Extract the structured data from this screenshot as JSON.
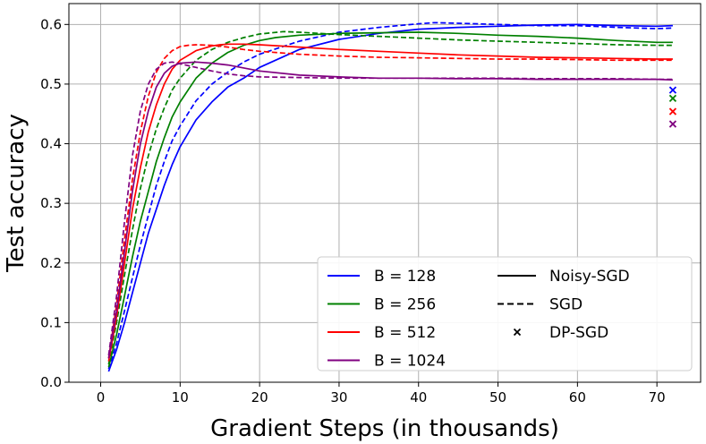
{
  "chart_data": {
    "type": "line",
    "title": "",
    "xlabel": "Gradient Steps (in thousands)",
    "ylabel": "Test accuracy",
    "xlim": [
      -4,
      75.5
    ],
    "ylim": [
      0.0,
      0.635
    ],
    "xticks": [
      0,
      10,
      20,
      30,
      40,
      50,
      60,
      70
    ],
    "yticks": [
      0.0,
      0.1,
      0.2,
      0.3,
      0.4,
      0.5,
      0.6
    ],
    "grid": true,
    "legend_position": "bottom-right",
    "legend_batch_entries": [
      {
        "label": "B = 128",
        "color": "#0000ff"
      },
      {
        "label": "B = 256",
        "color": "#008000"
      },
      {
        "label": "B = 512",
        "color": "#ff0000"
      },
      {
        "label": "B = 1024",
        "color": "#800080"
      }
    ],
    "legend_style_entries": [
      {
        "label": "Noisy-SGD",
        "style": "solid"
      },
      {
        "label": "SGD",
        "style": "dashed"
      },
      {
        "label": "DP-SGD",
        "style": "cross"
      }
    ],
    "series": [
      {
        "batch": "B = 128",
        "method": "Noisy-SGD",
        "color": "#0000ff",
        "style": "solid",
        "x": [
          1,
          2,
          3,
          4,
          5,
          6,
          7,
          8,
          9,
          10,
          12,
          14,
          16,
          18,
          20,
          25,
          30,
          35,
          40,
          45,
          50,
          55,
          60,
          65,
          70,
          72
        ],
        "y": [
          0.018,
          0.055,
          0.1,
          0.15,
          0.2,
          0.25,
          0.29,
          0.33,
          0.365,
          0.395,
          0.44,
          0.47,
          0.495,
          0.51,
          0.528,
          0.558,
          0.575,
          0.585,
          0.592,
          0.595,
          0.597,
          0.599,
          0.6,
          0.598,
          0.597,
          0.598
        ]
      },
      {
        "batch": "B = 128",
        "method": "SGD",
        "color": "#0000ff",
        "style": "dashed",
        "x": [
          1,
          2,
          3,
          4,
          5,
          6,
          7,
          8,
          9,
          10,
          12,
          14,
          16,
          18,
          20,
          25,
          30,
          35,
          40,
          42,
          45,
          50,
          55,
          60,
          65,
          70,
          72
        ],
        "y": [
          0.022,
          0.065,
          0.12,
          0.175,
          0.23,
          0.28,
          0.33,
          0.37,
          0.405,
          0.43,
          0.472,
          0.5,
          0.52,
          0.537,
          0.55,
          0.572,
          0.587,
          0.595,
          0.601,
          0.603,
          0.602,
          0.6,
          0.598,
          0.598,
          0.595,
          0.593,
          0.594
        ]
      },
      {
        "batch": "B = 256",
        "method": "Noisy-SGD",
        "color": "#008000",
        "style": "solid",
        "x": [
          1,
          2,
          3,
          4,
          5,
          6,
          7,
          8,
          9,
          10,
          12,
          14,
          16,
          18,
          20,
          22,
          25,
          30,
          35,
          40,
          45,
          50,
          55,
          60,
          65,
          70,
          72
        ],
        "y": [
          0.025,
          0.08,
          0.145,
          0.21,
          0.27,
          0.32,
          0.37,
          0.41,
          0.445,
          0.47,
          0.51,
          0.535,
          0.553,
          0.565,
          0.573,
          0.578,
          0.582,
          0.585,
          0.586,
          0.587,
          0.585,
          0.582,
          0.58,
          0.577,
          0.573,
          0.57,
          0.57
        ]
      },
      {
        "batch": "B = 256",
        "method": "SGD",
        "color": "#008000",
        "style": "dashed",
        "x": [
          1,
          2,
          3,
          4,
          5,
          6,
          7,
          8,
          9,
          10,
          12,
          14,
          16,
          18,
          20,
          23,
          25,
          30,
          35,
          40,
          45,
          50,
          55,
          60,
          65,
          70,
          72
        ],
        "y": [
          0.03,
          0.1,
          0.18,
          0.255,
          0.325,
          0.38,
          0.425,
          0.46,
          0.49,
          0.51,
          0.54,
          0.558,
          0.57,
          0.578,
          0.584,
          0.588,
          0.587,
          0.583,
          0.58,
          0.577,
          0.574,
          0.572,
          0.57,
          0.568,
          0.566,
          0.565,
          0.565
        ]
      },
      {
        "batch": "B = 512",
        "method": "Noisy-SGD",
        "color": "#ff0000",
        "style": "solid",
        "x": [
          1,
          2,
          3,
          4,
          5,
          6,
          7,
          8,
          9,
          10,
          12,
          14,
          15,
          16,
          18,
          20,
          25,
          30,
          35,
          40,
          45,
          50,
          55,
          60,
          65,
          70,
          72
        ],
        "y": [
          0.035,
          0.11,
          0.2,
          0.29,
          0.36,
          0.42,
          0.465,
          0.5,
          0.525,
          0.54,
          0.556,
          0.564,
          0.566,
          0.567,
          0.567,
          0.566,
          0.562,
          0.558,
          0.555,
          0.552,
          0.549,
          0.547,
          0.545,
          0.544,
          0.543,
          0.542,
          0.542
        ]
      },
      {
        "batch": "B = 512",
        "method": "SGD",
        "color": "#ff0000",
        "style": "dashed",
        "x": [
          1,
          2,
          3,
          4,
          5,
          6,
          7,
          8,
          9,
          10,
          11,
          12,
          14,
          16,
          18,
          20,
          25,
          30,
          35,
          40,
          45,
          50,
          55,
          60,
          65,
          70,
          72
        ],
        "y": [
          0.04,
          0.13,
          0.24,
          0.34,
          0.42,
          0.48,
          0.52,
          0.543,
          0.556,
          0.563,
          0.565,
          0.566,
          0.565,
          0.562,
          0.558,
          0.555,
          0.55,
          0.547,
          0.545,
          0.544,
          0.543,
          0.542,
          0.542,
          0.541,
          0.54,
          0.54,
          0.54
        ]
      },
      {
        "batch": "B = 1024",
        "method": "Noisy-SGD",
        "color": "#800080",
        "style": "solid",
        "x": [
          1,
          2,
          3,
          4,
          5,
          6,
          7,
          8,
          9,
          10,
          12,
          14,
          16,
          18,
          20,
          25,
          30,
          35,
          40,
          45,
          50,
          55,
          60,
          65,
          70,
          72
        ],
        "y": [
          0.04,
          0.12,
          0.22,
          0.32,
          0.4,
          0.455,
          0.495,
          0.518,
          0.53,
          0.535,
          0.537,
          0.535,
          0.532,
          0.527,
          0.522,
          0.515,
          0.512,
          0.51,
          0.51,
          0.509,
          0.509,
          0.508,
          0.508,
          0.508,
          0.508,
          0.507
        ]
      },
      {
        "batch": "B = 1024",
        "method": "SGD",
        "color": "#800080",
        "style": "dashed",
        "x": [
          1,
          2,
          3,
          4,
          5,
          6,
          7,
          8,
          9,
          10,
          12,
          14,
          16,
          18,
          20,
          25,
          30,
          35,
          40,
          45,
          50,
          55,
          60,
          65,
          70,
          72
        ],
        "y": [
          0.045,
          0.145,
          0.27,
          0.38,
          0.455,
          0.5,
          0.525,
          0.535,
          0.537,
          0.534,
          0.528,
          0.522,
          0.517,
          0.514,
          0.512,
          0.511,
          0.51,
          0.51,
          0.51,
          0.51,
          0.51,
          0.509,
          0.509,
          0.509,
          0.508,
          0.508
        ]
      }
    ],
    "dp_sgd_points": [
      {
        "batch": "B = 128",
        "color": "#0000ff",
        "x": 72,
        "y": 0.49
      },
      {
        "batch": "B = 256",
        "color": "#008000",
        "x": 72,
        "y": 0.476
      },
      {
        "batch": "B = 512",
        "color": "#ff0000",
        "x": 72,
        "y": 0.454
      },
      {
        "batch": "B = 1024",
        "color": "#800080",
        "x": 72,
        "y": 0.433
      }
    ]
  }
}
